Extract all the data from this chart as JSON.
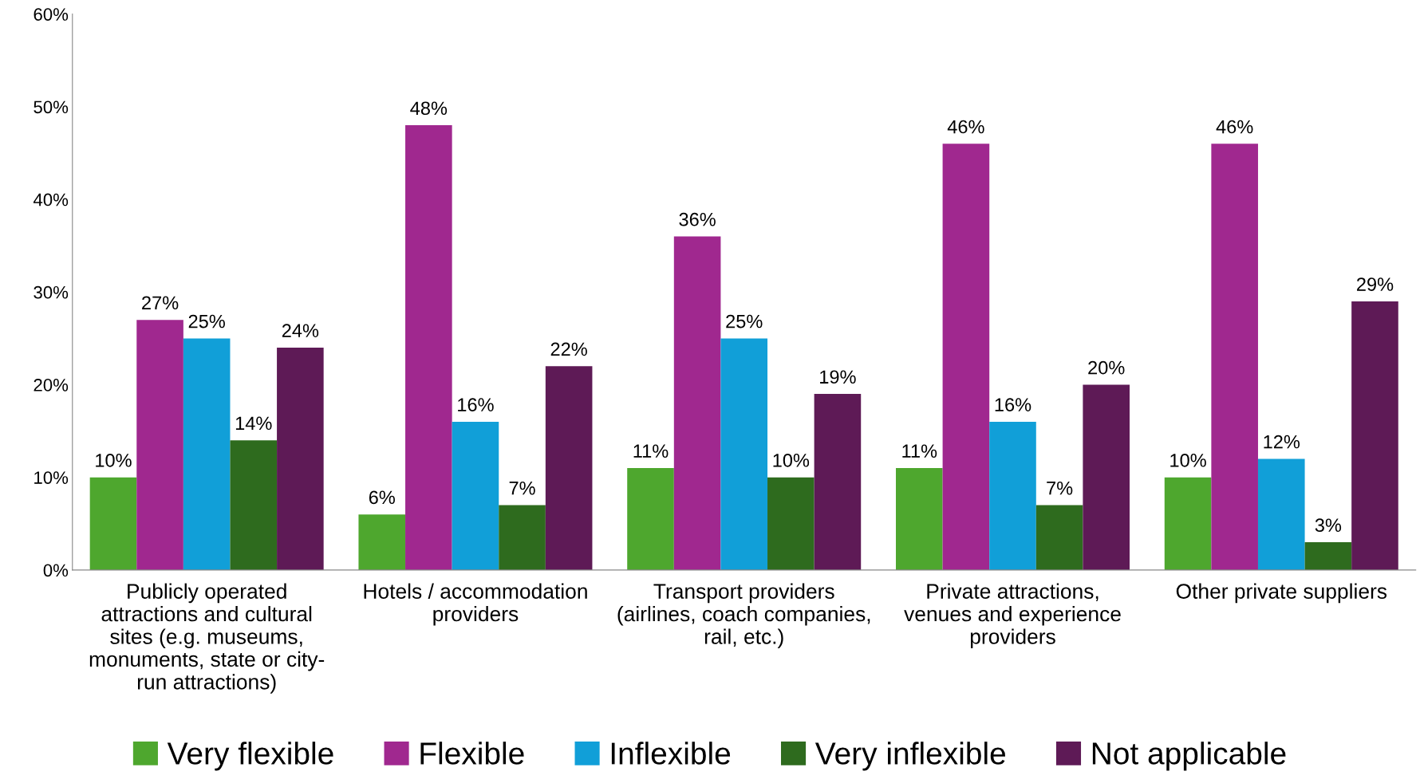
{
  "chart_data": {
    "type": "bar",
    "categories": [
      "Publicly operated\nattractions and cultural\nsites (e.g. museums,\nmonuments, state or city-\nrun attractions)",
      "Hotels / accommodation\nproviders",
      "Transport providers\n(airlines, coach companies,\nrail, etc.)",
      "Private attractions,\nvenues and experience\nproviders",
      "Other private suppliers"
    ],
    "series": [
      {
        "name": "Very flexible",
        "color": "#4ea72e",
        "values": [
          10,
          6,
          11,
          11,
          10
        ],
        "value_labels": [
          "10%",
          "6%",
          "11%",
          "11%",
          "10%"
        ]
      },
      {
        "name": "Flexible",
        "color": "#a0288f",
        "values": [
          27,
          48,
          36,
          46,
          46
        ],
        "value_labels": [
          "27%",
          "48%",
          "36%",
          "46%",
          "46%"
        ]
      },
      {
        "name": "Inflexible",
        "color": "#119fd8",
        "values": [
          25,
          16,
          25,
          16,
          12
        ],
        "value_labels": [
          "25%",
          "16%",
          "25%",
          "16%",
          "12%"
        ]
      },
      {
        "name": "Very inflexible",
        "color": "#2e6b1e",
        "values": [
          14,
          7,
          10,
          7,
          3
        ],
        "value_labels": [
          "14%",
          "7%",
          "10%",
          "7%",
          "3%"
        ]
      },
      {
        "name": "Not applicable",
        "color": "#5e1a56",
        "values": [
          24,
          22,
          19,
          20,
          29
        ],
        "value_labels": [
          "24%",
          "22%",
          "19%",
          "20%",
          "29%"
        ]
      }
    ],
    "ylim": [
      0,
      60
    ],
    "yticks": [
      {
        "value": 0,
        "label": "0%"
      },
      {
        "value": 10,
        "label": "10%"
      },
      {
        "value": 20,
        "label": "20%"
      },
      {
        "value": 30,
        "label": "30%"
      },
      {
        "value": 40,
        "label": "40%"
      },
      {
        "value": 50,
        "label": "50%"
      },
      {
        "value": 60,
        "label": "60%"
      }
    ],
    "grid": false,
    "legend": "bottom"
  }
}
